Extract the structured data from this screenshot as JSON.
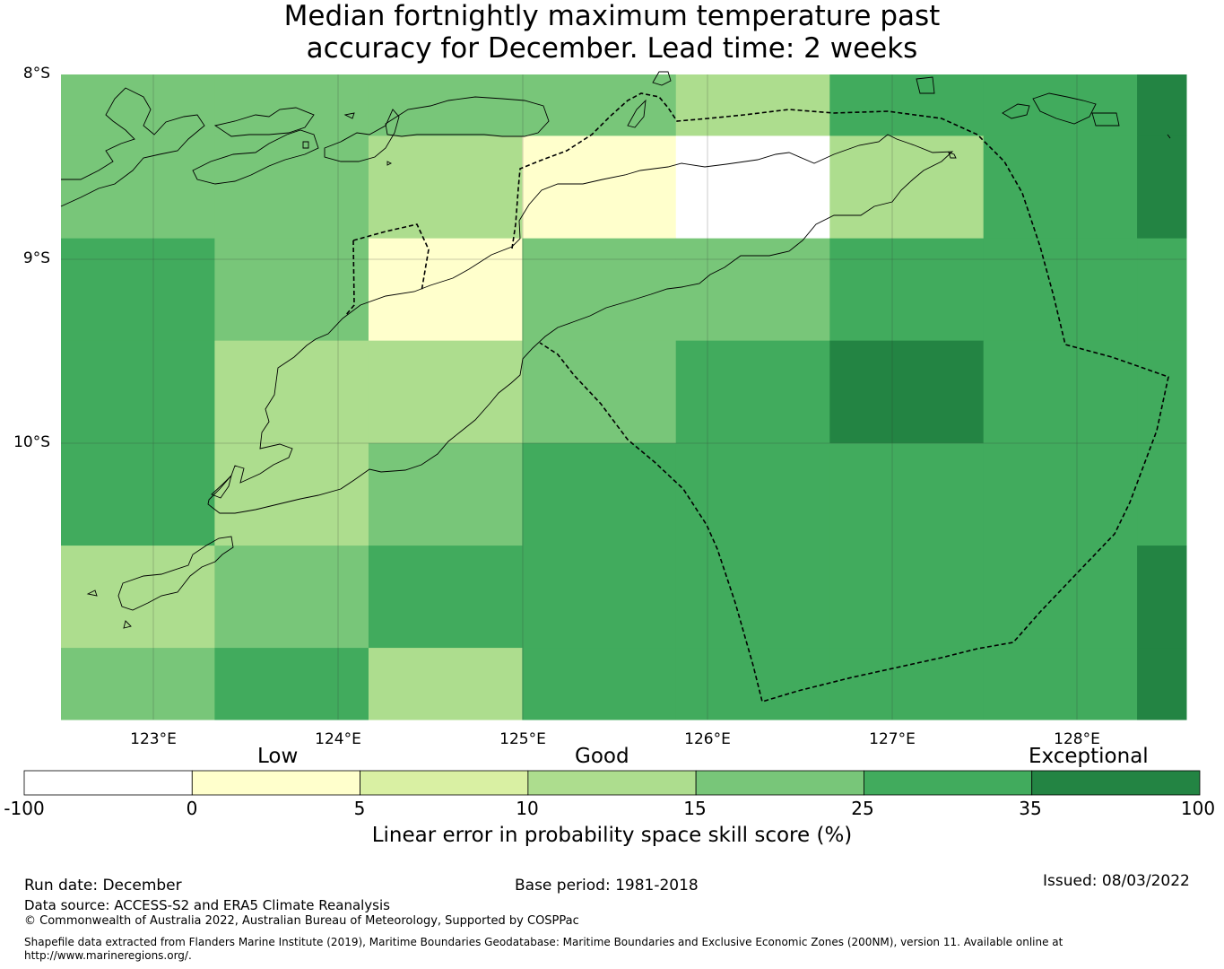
{
  "title": {
    "line1": "Median fortnightly maximum temperature past",
    "line2": "accuracy for December. Lead time: 2 weeks"
  },
  "map": {
    "lon_range": [
      122.5,
      128.6
    ],
    "lat_range": [
      -11.5,
      -8.0
    ],
    "lat_labels": [
      "8°S",
      "9°S",
      "10°S"
    ],
    "lon_labels": [
      "123°E",
      "124°E",
      "125°E",
      "126°E",
      "127°E",
      "128°E"
    ],
    "grid_lons": [
      122.5,
      123.333,
      124.167,
      125.0,
      125.833,
      126.667,
      127.5,
      128.333,
      128.6
    ],
    "grid_lats": [
      -8.0,
      -8.333,
      -8.889,
      -9.444,
      -10.0,
      -10.556,
      -11.111,
      -11.5
    ],
    "cell_categories": [
      [
        4,
        4,
        4,
        4,
        3,
        5,
        5,
        6
      ],
      [
        4,
        4,
        3,
        1,
        0,
        3,
        5,
        6
      ],
      [
        5,
        4,
        1,
        4,
        4,
        5,
        5,
        5
      ],
      [
        5,
        3,
        3,
        4,
        5,
        6,
        5,
        5
      ],
      [
        5,
        3,
        4,
        5,
        5,
        5,
        5,
        5
      ],
      [
        3,
        4,
        5,
        5,
        5,
        5,
        5,
        6
      ],
      [
        4,
        5,
        3,
        5,
        5,
        5,
        5,
        6
      ]
    ]
  },
  "colorbar": {
    "category_labels": [
      "Low",
      "Good",
      "Exceptional"
    ],
    "ticks": [
      "-100",
      "0",
      "5",
      "10",
      "15",
      "25",
      "35",
      "100"
    ],
    "colors": [
      "#ffffff",
      "#ffffcc",
      "#d9f0a3",
      "#addd8e",
      "#78c679",
      "#41ab5d",
      "#238443"
    ],
    "label": "Linear error in probability space skill score (%)"
  },
  "footer": {
    "run_date": "Run date: December",
    "base_period": "Base period: 1981-2018",
    "issued": "Issued: 08/03/2022",
    "data_source": "Data source: ACCESS-S2 and ERA5 Climate Reanalysis",
    "copyright": "© Commonwealth of Australia 2022, Australian Bureau of Meteorology, Supported by COSPPac",
    "shapefile_line1": "Shapefile data extracted from Flanders Marine Institute (2019), Maritime Boundaries Geodatabase: Maritime Boundaries and Exclusive Economic Zones (200NM), version 11. Available online at",
    "shapefile_line2": "http://www.marineregions.org/."
  }
}
